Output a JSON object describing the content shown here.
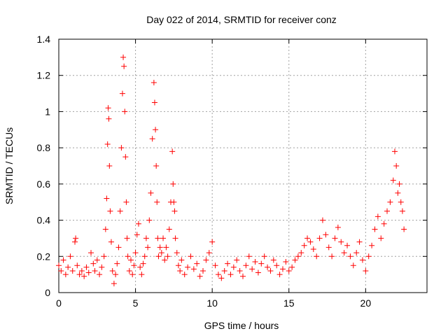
{
  "chart_data": {
    "type": "scatter",
    "title": "Day 022 of 2014, SRMTID for receiver conz",
    "xlabel": "GPS time / hours",
    "ylabel": "SRMTID / TECUs",
    "xlim": [
      0,
      24
    ],
    "ylim": [
      0,
      1.4
    ],
    "x_ticks": [
      0,
      5,
      10,
      15,
      20
    ],
    "x_tick_labels": [
      "0",
      "5",
      "10",
      "15",
      "20"
    ],
    "y_ticks": [
      0,
      0.2,
      0.4,
      0.6,
      0.8,
      1,
      1.2,
      1.4
    ],
    "y_tick_labels": [
      "0",
      "0.2",
      "0.4",
      "0.6",
      "0.8",
      "1",
      "1.2",
      "1.4"
    ],
    "grid": true,
    "marker": "+",
    "color": "#ff0000",
    "series": [
      {
        "name": "SRMTID",
        "x": [
          0.0,
          0.15,
          0.3,
          0.45,
          0.6,
          0.75,
          0.9,
          1.05,
          1.1,
          1.2,
          1.35,
          1.5,
          1.65,
          1.8,
          1.95,
          2.1,
          2.25,
          2.35,
          2.5,
          2.65,
          2.8,
          2.95,
          3.05,
          3.12,
          3.18,
          3.22,
          3.26,
          3.3,
          3.35,
          3.42,
          3.5,
          3.6,
          3.7,
          3.8,
          3.9,
          4.0,
          4.08,
          4.15,
          4.2,
          4.25,
          4.3,
          4.35,
          4.4,
          4.45,
          4.5,
          4.6,
          4.7,
          4.8,
          4.9,
          5.0,
          5.1,
          5.2,
          5.3,
          5.4,
          5.5,
          5.6,
          5.7,
          5.8,
          5.9,
          6.0,
          6.1,
          6.2,
          6.25,
          6.3,
          6.35,
          6.4,
          6.45,
          6.5,
          6.6,
          6.7,
          6.8,
          6.9,
          7.0,
          7.1,
          7.2,
          7.3,
          7.4,
          7.45,
          7.5,
          7.55,
          7.6,
          7.7,
          7.8,
          7.9,
          8.0,
          8.2,
          8.4,
          8.6,
          8.8,
          9.0,
          9.2,
          9.4,
          9.6,
          9.8,
          10.0,
          10.2,
          10.4,
          10.6,
          10.8,
          11.0,
          11.2,
          11.4,
          11.6,
          11.8,
          12.0,
          12.2,
          12.4,
          12.6,
          12.8,
          13.0,
          13.2,
          13.4,
          13.6,
          13.8,
          14.0,
          14.2,
          14.4,
          14.6,
          14.8,
          15.0,
          15.2,
          15.4,
          15.6,
          15.8,
          16.0,
          16.2,
          16.4,
          16.6,
          16.8,
          17.0,
          17.2,
          17.4,
          17.6,
          17.8,
          18.0,
          18.2,
          18.4,
          18.6,
          18.8,
          19.0,
          19.2,
          19.4,
          19.6,
          19.8,
          20.0,
          20.2,
          20.4,
          20.6,
          20.8,
          21.0,
          21.2,
          21.4,
          21.6,
          21.8,
          21.9,
          22.0,
          22.1,
          22.2,
          22.3,
          22.4,
          22.5
        ],
        "y": [
          0.15,
          0.12,
          0.18,
          0.1,
          0.14,
          0.2,
          0.12,
          0.28,
          0.3,
          0.15,
          0.1,
          0.12,
          0.09,
          0.14,
          0.11,
          0.22,
          0.16,
          0.12,
          0.18,
          0.1,
          0.14,
          0.2,
          0.35,
          0.52,
          0.82,
          1.02,
          0.96,
          0.7,
          0.45,
          0.28,
          0.12,
          0.05,
          0.1,
          0.16,
          0.25,
          0.45,
          0.8,
          1.1,
          1.3,
          1.25,
          1.0,
          0.75,
          0.5,
          0.3,
          0.2,
          0.12,
          0.18,
          0.1,
          0.15,
          0.22,
          0.32,
          0.38,
          0.14,
          0.1,
          0.16,
          0.2,
          0.3,
          0.25,
          0.4,
          0.55,
          0.85,
          1.16,
          1.05,
          0.9,
          0.7,
          0.5,
          0.3,
          0.2,
          0.25,
          0.22,
          0.3,
          0.18,
          0.25,
          0.2,
          0.35,
          0.5,
          0.78,
          0.6,
          0.5,
          0.45,
          0.3,
          0.22,
          0.15,
          0.12,
          0.18,
          0.1,
          0.14,
          0.2,
          0.13,
          0.16,
          0.09,
          0.12,
          0.18,
          0.22,
          0.28,
          0.15,
          0.1,
          0.08,
          0.12,
          0.16,
          0.1,
          0.14,
          0.18,
          0.12,
          0.09,
          0.15,
          0.2,
          0.13,
          0.17,
          0.11,
          0.16,
          0.2,
          0.14,
          0.12,
          0.18,
          0.15,
          0.1,
          0.13,
          0.17,
          0.12,
          0.14,
          0.18,
          0.2,
          0.22,
          0.26,
          0.3,
          0.28,
          0.24,
          0.2,
          0.3,
          0.4,
          0.32,
          0.25,
          0.2,
          0.3,
          0.36,
          0.28,
          0.22,
          0.26,
          0.2,
          0.15,
          0.22,
          0.28,
          0.18,
          0.12,
          0.2,
          0.26,
          0.35,
          0.42,
          0.3,
          0.38,
          0.45,
          0.5,
          0.62,
          0.78,
          0.7,
          0.55,
          0.6,
          0.5,
          0.45,
          0.35
        ]
      }
    ]
  }
}
